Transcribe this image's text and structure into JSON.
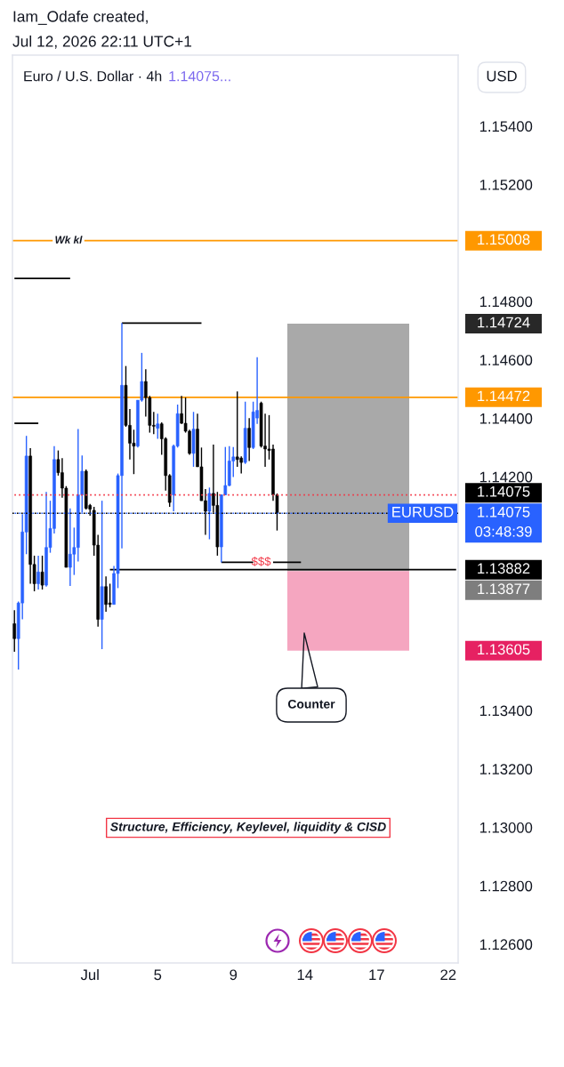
{
  "chart_data": {
    "type": "candlestick",
    "title": "Euro / U.S. Dollar · 4h",
    "subtitle": "1.14075...",
    "ylabel": "USD",
    "annotations": [
      "Iam_Odafe created,",
      "Jul 12, 2026 22:11 UTC+1",
      "Counter",
      "Structure, Efficiency, Keylevel, liquidity & CISD",
      "03:48:39",
      "1.15008",
      "1.14724",
      "1.14472",
      "1.14075",
      "1.14075",
      "1.13877",
      "1.13605"
    ],
    "categories": [
      null,
      null,
      null,
      null,
      null,
      null,
      null,
      null,
      null,
      null,
      null,
      null,
      null,
      null,
      null,
      null,
      null,
      null,
      null,
      "Jul",
      null,
      null,
      null,
      null,
      null,
      null,
      null,
      null,
      null,
      null,
      null,
      null,
      null,
      null,
      null,
      null,
      "5",
      null,
      null,
      null,
      null,
      null,
      null,
      null,
      null,
      null,
      null,
      null,
      null,
      null,
      null,
      null,
      null,
      null,
      null,
      "9",
      null,
      null,
      null,
      null,
      null,
      null,
      null,
      null,
      null,
      null,
      null,
      null,
      null,
      null,
      null,
      null,
      null,
      "14",
      null,
      null,
      null,
      null,
      null,
      null,
      null,
      null,
      null,
      null,
      null,
      null,
      null,
      null,
      null,
      null,
      null,
      "17",
      null,
      null,
      null,
      null,
      null,
      null,
      null,
      null,
      null,
      null,
      null,
      null,
      null,
      null,
      null,
      null,
      null,
      "22",
      null,
      null
    ],
    "ohlc": [
      [
        1.13697,
        1.13743,
        1.13601,
        1.13646
      ],
      [
        1.13646,
        1.13773,
        1.1354,
        1.13768
      ],
      [
        1.13768,
        1.14072,
        1.13712,
        1.14011
      ],
      [
        1.14011,
        1.1434,
        1.13935,
        1.14271
      ],
      [
        1.14271,
        1.14298,
        1.13834,
        1.139
      ],
      [
        1.139,
        1.1393,
        1.13808,
        1.13834
      ],
      [
        1.13834,
        1.1393,
        1.13814,
        1.13874
      ],
      [
        1.13874,
        1.1393,
        1.13814,
        1.13829
      ],
      [
        1.13829,
        1.14148,
        1.13824,
        1.13958
      ],
      [
        1.13958,
        1.14118,
        1.1394,
        1.14023
      ],
      [
        1.14023,
        1.14305,
        1.14006,
        1.14259
      ],
      [
        1.14259,
        1.1429,
        1.14204,
        1.14214
      ],
      [
        1.14214,
        1.14264,
        1.14128,
        1.14161
      ],
      [
        1.14161,
        1.14168,
        1.1389,
        1.1389
      ],
      [
        1.1389,
        1.14092,
        1.13826,
        1.13935
      ],
      [
        1.13935,
        1.14026,
        1.13864,
        1.13958
      ],
      [
        1.13958,
        1.14363,
        1.1391,
        1.14138
      ],
      [
        1.14138,
        1.14273,
        1.14077,
        1.14219
      ],
      [
        1.14219,
        1.14225,
        1.14088,
        1.14092
      ],
      [
        1.14102,
        1.14107,
        1.14067,
        1.14089
      ],
      [
        1.14085,
        1.14097,
        1.1393,
        1.13966
      ],
      [
        1.13966,
        1.14001,
        1.13687,
        1.13712
      ],
      [
        1.13712,
        1.14118,
        1.1361,
        1.13824
      ],
      [
        1.13824,
        1.13859,
        1.13738,
        1.13763
      ],
      [
        1.13768,
        1.13834,
        1.13753,
        1.13763
      ],
      [
        1.13763,
        1.13895,
        1.13763,
        1.13869
      ],
      [
        1.13869,
        1.14211,
        1.13819,
        1.14204
      ],
      [
        1.14204,
        1.14726,
        1.13955,
        1.14513
      ],
      [
        1.14513,
        1.14579,
        1.14371,
        1.14376
      ],
      [
        1.14376,
        1.14432,
        1.14259,
        1.14315
      ],
      [
        1.14315,
        1.14361,
        1.14209,
        1.14305
      ],
      [
        1.14305,
        1.14462,
        1.143,
        1.14462
      ],
      [
        1.14462,
        1.14624,
        1.14457,
        1.14526
      ],
      [
        1.14526,
        1.14568,
        1.14406,
        1.14471
      ],
      [
        1.14471,
        1.14477,
        1.14351,
        1.14376
      ],
      [
        1.14376,
        1.14422,
        1.14346,
        1.14373
      ],
      [
        1.14366,
        1.14416,
        1.1433,
        1.14381
      ],
      [
        1.14381,
        1.14386,
        1.14275,
        1.1433
      ],
      [
        1.1433,
        1.14335,
        1.14153,
        1.14204
      ],
      [
        1.14204,
        1.14209,
        1.14097,
        1.14112
      ],
      [
        1.14138,
        1.1431,
        1.14082,
        1.14305
      ],
      [
        1.14305,
        1.14447,
        1.143,
        1.14416
      ],
      [
        1.14416,
        1.14477,
        1.14381,
        1.14383
      ],
      [
        1.14383,
        1.14471,
        1.14351,
        1.14356
      ],
      [
        1.14356,
        1.14361,
        1.14275,
        1.1428
      ],
      [
        1.1428,
        1.14422,
        1.14234,
        1.14363
      ],
      [
        1.14363,
        1.14416,
        1.14234,
        1.14234
      ],
      [
        1.14234,
        1.143,
        1.14118,
        1.14118
      ],
      [
        1.14118,
        1.14158,
        1.14001,
        1.14082
      ],
      [
        1.14082,
        1.14163,
        1.13986,
        1.14143
      ],
      [
        1.14143,
        1.1431,
        1.14077,
        1.14102
      ],
      [
        1.14102,
        1.14148,
        1.1393,
        1.1396
      ],
      [
        1.1396,
        1.1414,
        1.13907,
        1.14138
      ],
      [
        1.14138,
        1.14302,
        1.14137,
        1.1417
      ],
      [
        1.1417,
        1.14305,
        1.14168,
        1.14254
      ],
      [
        1.14254,
        1.14302,
        1.14199,
        1.14268
      ],
      [
        1.14268,
        1.14492,
        1.14234,
        1.14259
      ],
      [
        1.14264,
        1.1427,
        1.14211,
        1.14249
      ],
      [
        1.14249,
        1.14457,
        1.14244,
        1.14366
      ],
      [
        1.14366,
        1.14401,
        1.14254,
        1.143
      ],
      [
        1.143,
        1.14457,
        1.14295,
        1.14422
      ],
      [
        1.14401,
        1.14609,
        1.14381,
        1.14427
      ],
      [
        1.14452,
        1.14457,
        1.143,
        1.14305
      ],
      [
        1.14305,
        1.14416,
        1.14234,
        1.14295
      ],
      [
        1.14295,
        1.14411,
        1.14259,
        1.1429
      ],
      [
        1.14295,
        1.1431,
        1.14118,
        1.14138
      ],
      [
        1.14138,
        1.14143,
        1.14016,
        1.14075
      ],
      null,
      null,
      null,
      null,
      null,
      null,
      null,
      null,
      null,
      null,
      null,
      null,
      null,
      null,
      null,
      null,
      null,
      null,
      null,
      null,
      null,
      null,
      null,
      null,
      null,
      null,
      null,
      null,
      null,
      null,
      null,
      null,
      null,
      null,
      null,
      null,
      null,
      null,
      null,
      null,
      null,
      null,
      null,
      null,
      null
    ],
    "colors": [
      "#000000",
      "#2962ff",
      "#2962ff",
      "#2962ff",
      "#000000",
      "#000000",
      "#2962ff",
      "#000000",
      "#2962ff",
      "#2962ff",
      "#2962ff",
      "#000000",
      "#000000",
      "#000000",
      "#2962ff",
      "#2962ff",
      "#2962ff",
      "#2962ff",
      "#000000",
      "#000000",
      "#000000",
      "#000000",
      "#2962ff",
      "#000000",
      "#000000",
      "#2962ff",
      "#2962ff",
      "#2962ff",
      "#000000",
      "#000000",
      "#000000",
      "#2962ff",
      "#2962ff",
      "#000000",
      "#000000",
      "#000000",
      "#2962ff",
      "#000000",
      "#000000",
      "#000000",
      "#2962ff",
      "#2962ff",
      "#000000",
      "#000000",
      "#000000",
      "#2962ff",
      "#000000",
      "#000000",
      "#000000",
      "#2962ff",
      "#000000",
      "#000000",
      "#2962ff",
      "#2962ff",
      "#2962ff",
      "#2962ff",
      "#000000",
      "#000000",
      "#2962ff",
      "#000000",
      "#2962ff",
      "#2962ff",
      "#000000",
      "#000000",
      "#000000",
      "#000000",
      "#000000",
      null,
      null,
      null,
      null,
      null,
      null,
      null,
      null,
      null,
      null,
      null,
      null,
      null,
      null,
      null,
      null,
      null,
      null,
      null,
      null,
      null,
      null,
      null,
      null,
      null,
      null,
      null,
      null,
      null,
      null,
      null,
      null,
      null,
      null,
      null,
      null,
      null,
      null,
      null,
      null,
      null,
      null,
      null,
      null,
      null
    ],
    "series": [
      {
        "type": "line",
        "color": "#000000",
        "values": [
          1.14879,
          1.14879,
          1.14879,
          1.14879,
          1.14879,
          1.14879,
          1.14879,
          1.14879,
          1.14879,
          1.14879,
          1.14879,
          1.14879,
          1.14879,
          1.14879,
          1.14879,
          null,
          null,
          null,
          null,
          null,
          null,
          null,
          null,
          null,
          null,
          null,
          null,
          null,
          null,
          null,
          null,
          null,
          null,
          null,
          null,
          null,
          null,
          null,
          null,
          null,
          null,
          null,
          null,
          null,
          null,
          null,
          null,
          null,
          null,
          null,
          null,
          null,
          null,
          null,
          null,
          null,
          null,
          null,
          null,
          null,
          null,
          null,
          null,
          null,
          null,
          null,
          null,
          null,
          null,
          null,
          null,
          null,
          null,
          null,
          null,
          null,
          null,
          null,
          null,
          null,
          null,
          null,
          null,
          null,
          null,
          null,
          null,
          null,
          null,
          null,
          null,
          null,
          null,
          null,
          null,
          null,
          null,
          null,
          null,
          null,
          null,
          null,
          null,
          null,
          null,
          null,
          null,
          null,
          null,
          null,
          null,
          null
        ]
      },
      {
        "type": "line",
        "color": "#000000",
        "values": [
          1.14383,
          1.14383,
          1.14383,
          1.14383,
          1.14383,
          1.14383,
          1.14383,
          null,
          null,
          null,
          null,
          null,
          null,
          null,
          null,
          null,
          null,
          null,
          null,
          null,
          null,
          null,
          null,
          null,
          null,
          null,
          null,
          null,
          null,
          null,
          null,
          null,
          null,
          null,
          null,
          null,
          null,
          null,
          null,
          null,
          null,
          null,
          null,
          null,
          null,
          null,
          null,
          null,
          null,
          null,
          null,
          null,
          null,
          null,
          null,
          null,
          null,
          null,
          null,
          null,
          null,
          null,
          null,
          null,
          null,
          null,
          null,
          null,
          null,
          null,
          null,
          null,
          null,
          null,
          null,
          null,
          null,
          null,
          null,
          null,
          null,
          null,
          null,
          null,
          null,
          null,
          null,
          null,
          null,
          null,
          null,
          null,
          null,
          null,
          null,
          null,
          null,
          null,
          null,
          null,
          null,
          null,
          null,
          null,
          null,
          null,
          null,
          null,
          null,
          null,
          null,
          null
        ]
      },
      {
        "type": "line",
        "color": "#000000",
        "values": [
          null,
          null,
          null,
          null,
          null,
          null,
          null,
          null,
          null,
          null,
          null,
          null,
          null,
          null,
          null,
          null,
          null,
          null,
          null,
          null,
          null,
          null,
          null,
          null,
          null,
          null,
          null,
          1.14726,
          1.14726,
          1.14726,
          1.14726,
          1.14726,
          1.14726,
          1.14726,
          1.14726,
          1.14726,
          1.14726,
          1.14726,
          1.14726,
          1.14726,
          1.14726,
          1.14726,
          1.14726,
          1.14726,
          1.14726,
          1.14726,
          1.14726,
          1.14726,
          null,
          null,
          null,
          null,
          null,
          null,
          null,
          null,
          null,
          null,
          null,
          null,
          null,
          null,
          null,
          null,
          null,
          null,
          null,
          null,
          null,
          null,
          null,
          null,
          null,
          null,
          null,
          null,
          null,
          null,
          null,
          null,
          null,
          null,
          null,
          null,
          null,
          null,
          null,
          null,
          null,
          null,
          null,
          null,
          null,
          null,
          null,
          null,
          null,
          null,
          null,
          null,
          null,
          null,
          null,
          null,
          null,
          null,
          null,
          null,
          null,
          null,
          null,
          null
        ]
      },
      {
        "type": "line",
        "name": "$$$",
        "color": "#000000",
        "values": [
          null,
          null,
          null,
          null,
          null,
          null,
          null,
          null,
          null,
          null,
          null,
          null,
          null,
          null,
          null,
          null,
          null,
          null,
          null,
          null,
          null,
          null,
          null,
          null,
          null,
          null,
          null,
          null,
          null,
          null,
          null,
          null,
          null,
          null,
          null,
          null,
          null,
          null,
          null,
          null,
          null,
          null,
          null,
          null,
          null,
          null,
          null,
          null,
          null,
          null,
          null,
          null,
          1.13907,
          1.13907,
          1.13907,
          1.13907,
          1.13907,
          1.13907,
          1.13907,
          1.13907,
          1.13907,
          null,
          null,
          null,
          null,
          1.13907,
          1.13907,
          1.13907,
          1.13907,
          1.13907,
          1.13907,
          1.13907,
          1.13907,
          null,
          null,
          null,
          null,
          null,
          null,
          null,
          null,
          null,
          null,
          null,
          null,
          null,
          null,
          null,
          null,
          null,
          null,
          null,
          null,
          null,
          null,
          null,
          null,
          null,
          null,
          null,
          null,
          null,
          null,
          null,
          null,
          null,
          null,
          null,
          null,
          null,
          null,
          null
        ]
      },
      {
        "type": "line",
        "color": "#000000",
        "values": [
          null,
          null,
          null,
          null,
          null,
          null,
          null,
          null,
          null,
          null,
          null,
          null,
          null,
          null,
          null,
          null,
          null,
          null,
          null,
          null,
          null,
          null,
          null,
          null,
          1.13882,
          1.13882,
          1.13882,
          1.13882,
          1.13882,
          1.13882,
          1.13882,
          1.13882,
          1.13882,
          1.13882,
          1.13882,
          1.13882,
          1.13882,
          1.13882,
          1.13882,
          1.13882,
          1.13882,
          1.13882,
          1.13882,
          1.13882,
          1.13882,
          1.13882,
          1.13882,
          1.13882,
          1.13882,
          1.13882,
          1.13882,
          1.13882,
          1.13882,
          1.13882,
          1.13882,
          1.13882,
          1.13882,
          1.13882,
          1.13882,
          1.13882,
          1.13882,
          1.13882,
          1.13882,
          1.13882,
          1.13882,
          1.13882,
          1.13882,
          1.13882,
          1.13882,
          1.13882,
          1.13882,
          1.13882,
          1.13882,
          1.13882,
          1.13882,
          1.13882,
          1.13882,
          1.13882,
          1.13882,
          1.13882,
          1.13882,
          1.13882,
          1.13882,
          1.13882,
          1.13882,
          1.13882,
          1.13882,
          1.13882,
          1.13882,
          1.13882,
          1.13882,
          1.13882,
          1.13882,
          1.13882,
          1.13882,
          1.13882,
          1.13882,
          1.13882,
          1.13882,
          1.13882,
          1.13882,
          1.13882,
          1.13882,
          1.13882,
          1.13882,
          1.13882,
          1.13882,
          1.13882,
          1.13882,
          1.13882,
          1.13882,
          1.13882
        ],
        "value_labels": [
          null,
          null,
          null,
          null,
          null,
          null,
          null,
          null,
          null,
          null,
          null,
          null,
          null,
          null,
          null,
          null,
          null,
          null,
          null,
          null,
          null,
          null,
          null,
          null,
          null,
          null,
          null,
          null,
          null,
          null,
          null,
          null,
          null,
          null,
          null,
          null,
          null,
          null,
          null,
          null,
          null,
          null,
          null,
          null,
          null,
          null,
          null,
          null,
          null,
          null,
          null,
          null,
          null,
          null,
          null,
          null,
          null,
          null,
          null,
          null,
          null,
          null,
          null,
          null,
          null,
          null,
          null,
          null,
          null,
          null,
          null,
          null,
          null,
          null,
          null,
          null,
          null,
          null,
          null,
          null,
          null,
          null,
          null,
          null,
          null,
          null,
          null,
          null,
          null,
          null,
          null,
          null,
          null,
          null,
          null,
          null,
          null,
          null,
          null,
          null,
          null,
          null,
          null,
          null,
          null,
          null,
          null,
          null,
          null,
          null,
          null,
          "1.13882"
        ]
      },
      {
        "type": "line",
        "color": "#f23645",
        "line_style": "dotted",
        "values": [
          1.14138,
          1.14138,
          1.14138,
          1.14138,
          1.14138,
          1.14138,
          1.14138,
          1.14138,
          1.14138,
          1.14138,
          1.14138,
          1.14138,
          1.14138,
          1.14138,
          1.14138,
          1.14138,
          1.14138,
          1.14138,
          1.14138,
          1.14138,
          1.14138,
          1.14138,
          1.14138,
          1.14138,
          1.14138,
          1.14138,
          1.14138,
          1.14138,
          1.14138,
          1.14138,
          1.14138,
          1.14138,
          1.14138,
          1.14138,
          1.14138,
          1.14138,
          1.14138,
          1.14138,
          1.14138,
          1.14138,
          1.14138,
          1.14138,
          1.14138,
          1.14138,
          1.14138,
          1.14138,
          1.14138,
          1.14138,
          1.14138,
          1.14138,
          1.14138,
          1.14138,
          1.14138,
          1.14138,
          1.14138,
          1.14138,
          1.14138,
          1.14138,
          1.14138,
          1.14138,
          1.14138,
          1.14138,
          1.14138,
          1.14138,
          1.14138,
          1.14138,
          1.14138,
          1.14138,
          1.14138,
          1.14138,
          1.14138,
          1.14138,
          1.14138,
          1.14138,
          1.14138,
          1.14138,
          1.14138,
          1.14138,
          1.14138,
          1.14138,
          1.14138,
          1.14138,
          1.14138,
          1.14138,
          1.14138,
          1.14138,
          1.14138,
          1.14138,
          1.14138,
          1.14138,
          1.14138,
          1.14138,
          1.14138,
          1.14138,
          1.14138,
          1.14138,
          1.14138,
          1.14138,
          1.14138,
          1.14138,
          1.14138,
          1.14138,
          1.14138,
          1.14138,
          1.14138,
          1.14138,
          1.14138,
          1.14138,
          1.14138,
          1.14138,
          1.14138,
          1.14138
        ]
      }
    ],
    "ref_lines": [
      {
        "axis": "y",
        "value": 1.15008,
        "label": "Wk kl",
        "color": "#ff9800"
      },
      {
        "axis": "y",
        "value": 1.14472,
        "color": "#ff9800"
      },
      {
        "axis": "y",
        "value": 1.14075,
        "color": "#000000",
        "line_style": "dotted"
      },
      {
        "axis": "y",
        "value": 1.14075,
        "label": "EURUSD",
        "color": "#2962ff",
        "line_style": "dotted"
      }
    ],
    "bands": [
      {
        "axis": "y",
        "from": 1.13877,
        "to": 1.14724,
        "color": "#a9a9a9"
      },
      {
        "axis": "y",
        "from": 1.13605,
        "to": 1.13877,
        "color": "#f5a6c0"
      }
    ],
    "ylim": [
      1.12536,
      1.15643
    ],
    "yticks": [
      {
        "value": 1.154,
        "label": "1.15400"
      },
      {
        "value": 1.152,
        "label": "1.15200"
      },
      {
        "value": 1.148,
        "label": "1.14800"
      },
      {
        "value": 1.146,
        "label": "1.14600"
      },
      {
        "value": 1.144,
        "label": "1.14400"
      },
      {
        "value": 1.142,
        "label": "1.14200"
      },
      {
        "value": 1.134,
        "label": "1.13400"
      },
      {
        "value": 1.132,
        "label": "1.13200"
      },
      {
        "value": 1.13,
        "label": "1.13000"
      },
      {
        "value": 1.128,
        "label": "1.12800"
      },
      {
        "value": 1.126,
        "label": "1.12600"
      }
    ]
  }
}
